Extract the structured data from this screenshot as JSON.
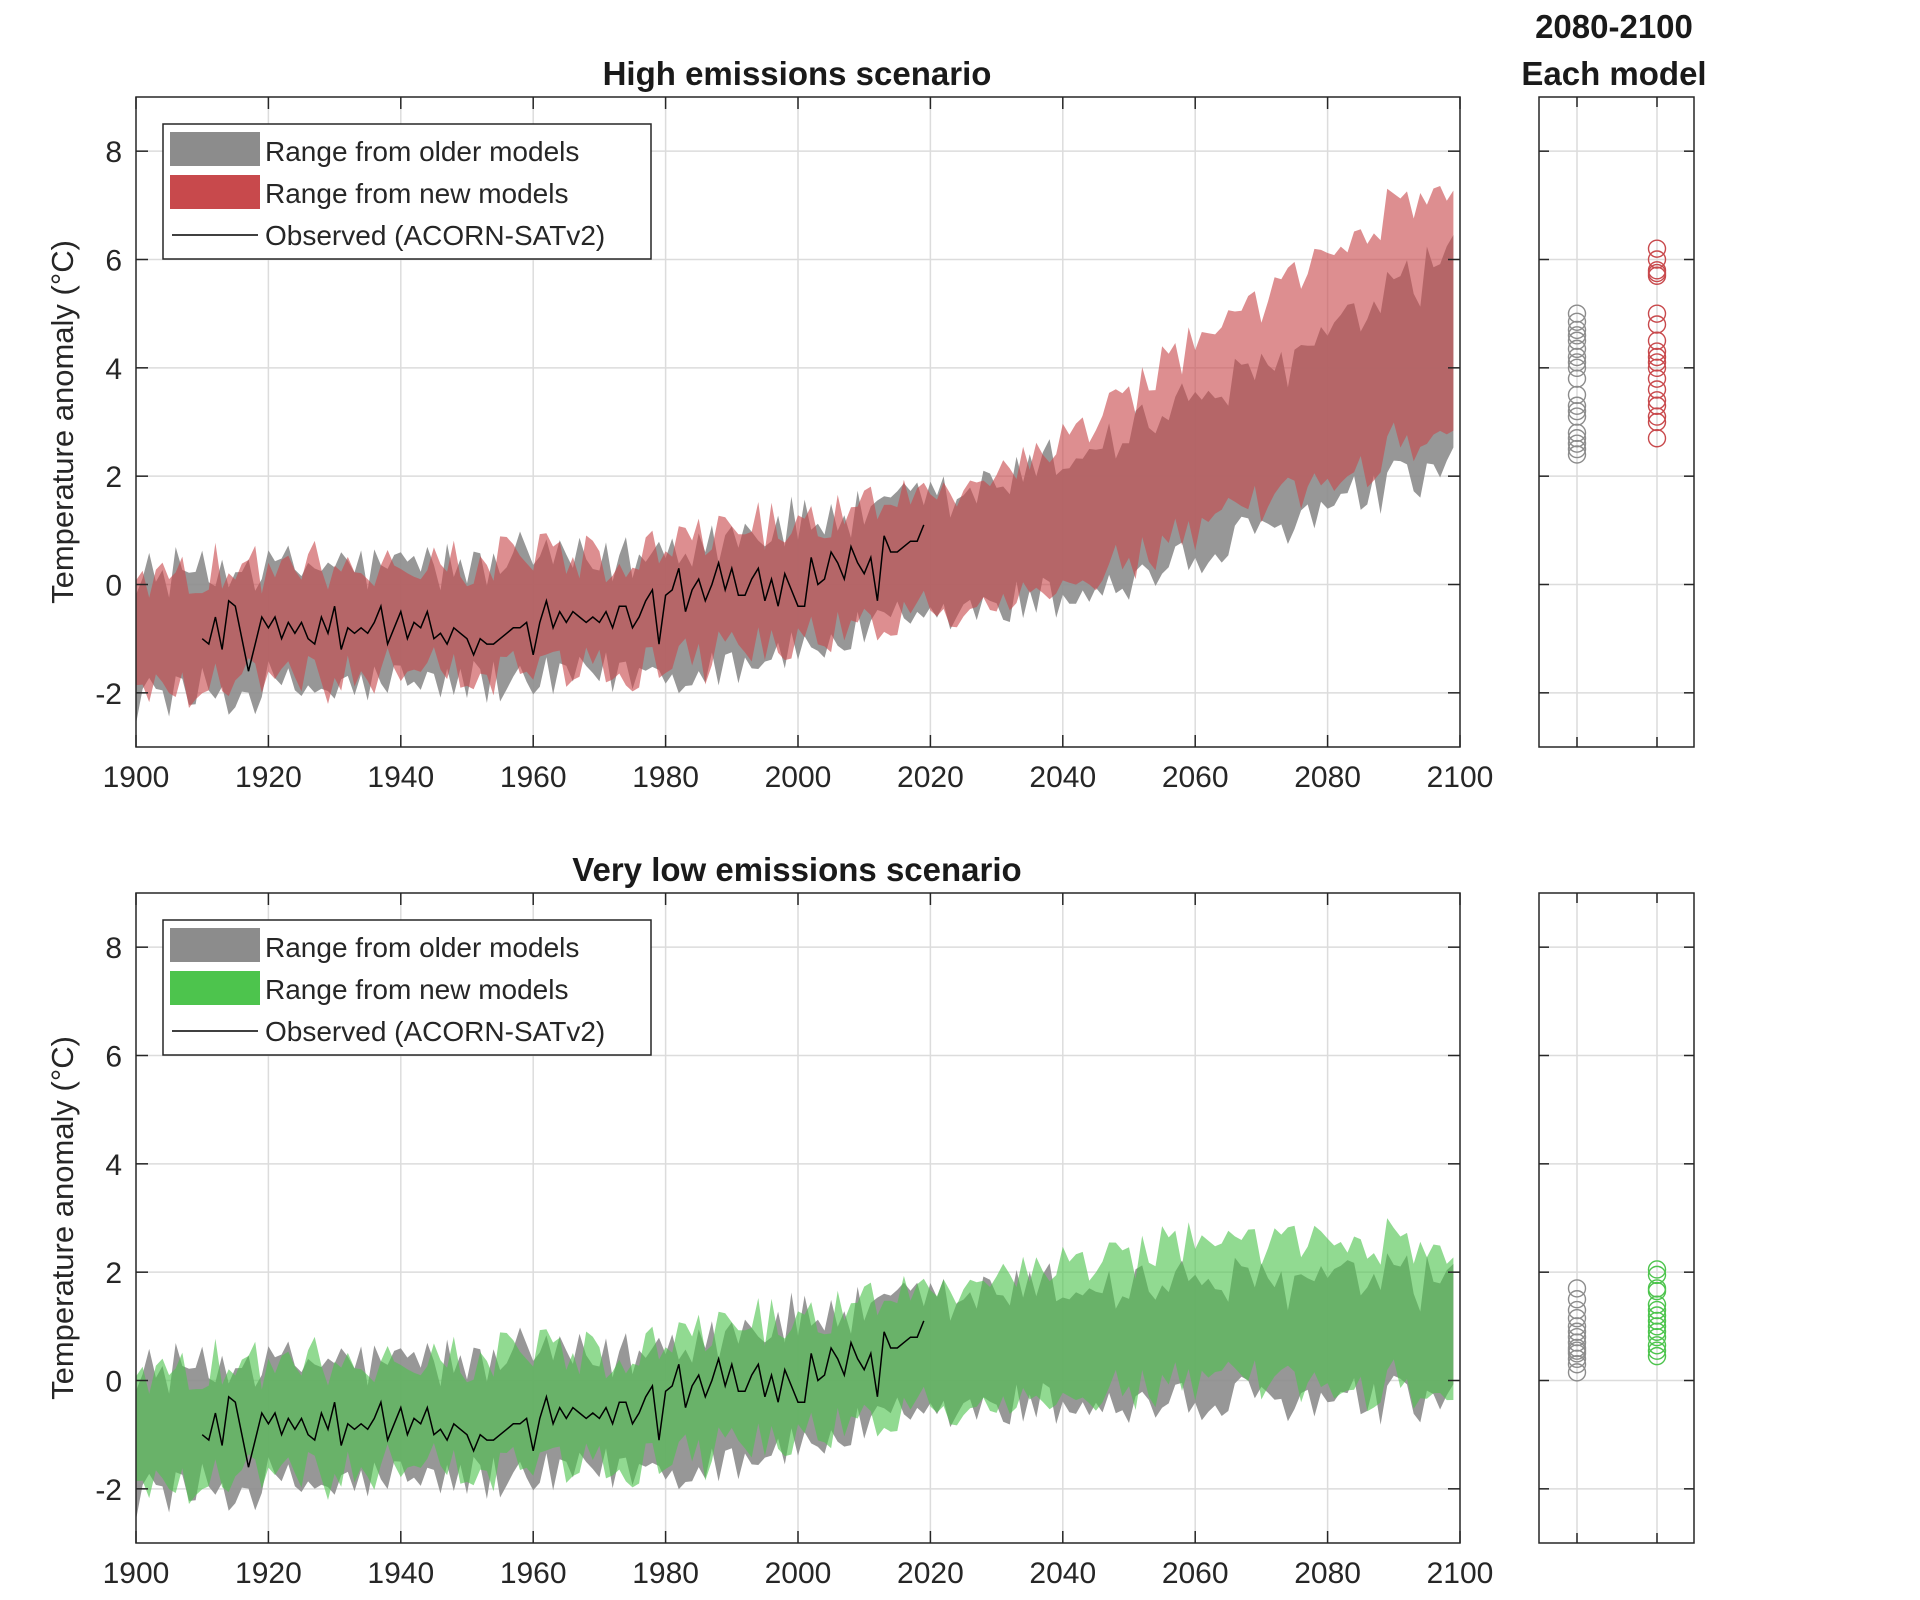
{
  "chart_data": [
    {
      "id": "high",
      "type": "area",
      "title": "High emissions scenario",
      "xlabel": "",
      "ylabel": "Temperature anomaly (°C)",
      "xlim": [
        1900,
        2100
      ],
      "ylim": [
        -3,
        9
      ],
      "x_ticks": [
        "1900",
        "1920",
        "1940",
        "1960",
        "1980",
        "2000",
        "2020",
        "2040",
        "2060",
        "2080",
        "2100"
      ],
      "y_ticks": [
        "-2",
        "0",
        "2",
        "4",
        "6",
        "8"
      ],
      "grid": true,
      "legend_position": "top-left",
      "legend": [
        "Range from older models",
        "Range from new models",
        "Observed (ACORN-SATv2)"
      ],
      "colors": {
        "older": "#8c8c8c",
        "new": "#c8494c",
        "observed": "#000000"
      },
      "older_range": {
        "x": [
          1900,
          1910,
          1920,
          1930,
          1940,
          1950,
          1960,
          1970,
          1980,
          1990,
          2000,
          2010,
          2020,
          2030,
          2040,
          2050,
          2060,
          2070,
          2080,
          2090,
          2099
        ],
        "lower": [
          -1.9,
          -1.9,
          -1.8,
          -1.8,
          -1.7,
          -1.7,
          -1.7,
          -1.6,
          -1.5,
          -1.3,
          -1.1,
          -0.8,
          -0.6,
          -0.3,
          -0.1,
          0.2,
          0.6,
          1.0,
          1.5,
          1.9,
          2.3
        ],
        "upper": [
          0.0,
          0.1,
          0.2,
          0.2,
          0.2,
          0.2,
          0.3,
          0.3,
          0.5,
          0.8,
          1.0,
          1.2,
          1.4,
          1.7,
          2.2,
          2.7,
          3.3,
          3.8,
          4.4,
          5.2,
          6.0
        ]
      },
      "new_range": {
        "x": [
          1900,
          1910,
          1920,
          1930,
          1940,
          1950,
          1960,
          1970,
          1980,
          1990,
          2000,
          2010,
          2020,
          2030,
          2040,
          2050,
          2060,
          2070,
          2080,
          2090,
          2099
        ],
        "lower": [
          -1.7,
          -1.7,
          -1.6,
          -1.6,
          -1.5,
          -1.5,
          -1.5,
          -1.4,
          -1.3,
          -1.1,
          -0.9,
          -0.6,
          -0.4,
          -0.1,
          0.2,
          0.6,
          1.0,
          1.5,
          2.0,
          2.6,
          3.2
        ],
        "upper": [
          0.1,
          0.1,
          0.2,
          0.2,
          0.2,
          0.2,
          0.3,
          0.4,
          0.6,
          0.8,
          1.0,
          1.3,
          1.6,
          2.0,
          2.6,
          3.4,
          4.2,
          5.0,
          5.9,
          6.8,
          7.4
        ]
      },
      "observed": {
        "x": [
          1910,
          1911,
          1912,
          1913,
          1914,
          1915,
          1916,
          1917,
          1918,
          1919,
          1920,
          1921,
          1922,
          1923,
          1924,
          1925,
          1926,
          1927,
          1928,
          1929,
          1930,
          1931,
          1932,
          1933,
          1934,
          1935,
          1936,
          1937,
          1938,
          1939,
          1940,
          1941,
          1942,
          1943,
          1944,
          1945,
          1946,
          1947,
          1948,
          1949,
          1950,
          1951,
          1952,
          1953,
          1954,
          1955,
          1956,
          1957,
          1958,
          1959,
          1960,
          1961,
          1962,
          1963,
          1964,
          1965,
          1966,
          1967,
          1968,
          1969,
          1970,
          1971,
          1972,
          1973,
          1974,
          1975,
          1976,
          1977,
          1978,
          1979,
          1980,
          1981,
          1982,
          1983,
          1984,
          1985,
          1986,
          1987,
          1988,
          1989,
          1990,
          1991,
          1992,
          1993,
          1994,
          1995,
          1996,
          1997,
          1998,
          1999,
          2000,
          2001,
          2002,
          2003,
          2004,
          2005,
          2006,
          2007,
          2008,
          2009,
          2010,
          2011,
          2012,
          2013,
          2014,
          2015,
          2016,
          2017,
          2018,
          2019
        ],
        "y": [
          -1.0,
          -1.1,
          -0.6,
          -1.2,
          -0.3,
          -0.4,
          -1.0,
          -1.6,
          -1.1,
          -0.6,
          -0.8,
          -0.6,
          -1.0,
          -0.7,
          -0.9,
          -0.7,
          -1.0,
          -1.1,
          -0.6,
          -0.9,
          -0.4,
          -1.2,
          -0.8,
          -0.9,
          -0.8,
          -0.9,
          -0.7,
          -0.4,
          -1.1,
          -0.8,
          -0.5,
          -1.0,
          -0.7,
          -0.8,
          -0.5,
          -1.0,
          -0.9,
          -1.1,
          -0.8,
          -0.9,
          -1.0,
          -1.3,
          -1.0,
          -1.1,
          -1.1,
          -1.0,
          -0.9,
          -0.8,
          -0.8,
          -0.7,
          -1.3,
          -0.7,
          -0.3,
          -0.8,
          -0.5,
          -0.7,
          -0.5,
          -0.6,
          -0.7,
          -0.6,
          -0.7,
          -0.5,
          -0.8,
          -0.4,
          -0.4,
          -0.8,
          -0.6,
          -0.3,
          -0.1,
          -1.1,
          -0.2,
          -0.1,
          0.3,
          -0.5,
          -0.1,
          0.1,
          -0.3,
          0.0,
          0.4,
          -0.1,
          0.3,
          -0.2,
          -0.2,
          0.1,
          0.3,
          -0.3,
          0.1,
          -0.4,
          0.2,
          -0.1,
          -0.4,
          -0.4,
          0.5,
          0.0,
          0.1,
          0.6,
          0.4,
          0.1,
          0.7,
          0.4,
          0.2,
          0.5,
          -0.3,
          0.9,
          0.6,
          0.6,
          0.7,
          0.8,
          0.8,
          1.1
        ]
      }
    },
    {
      "id": "low",
      "type": "area",
      "title": "Very low emissions scenario",
      "xlabel": "",
      "ylabel": "Temperature anomaly (°C)",
      "xlim": [
        1900,
        2100
      ],
      "ylim": [
        -3,
        9
      ],
      "x_ticks": [
        "1900",
        "1920",
        "1940",
        "1960",
        "1980",
        "2000",
        "2020",
        "2040",
        "2060",
        "2080",
        "2100"
      ],
      "y_ticks": [
        "-2",
        "0",
        "2",
        "4",
        "6",
        "8"
      ],
      "grid": true,
      "legend_position": "top-left",
      "legend": [
        "Range from older models",
        "Range from new models",
        "Observed (ACORN-SATv2)"
      ],
      "colors": {
        "older": "#8c8c8c",
        "new": "#4dc44d",
        "observed": "#000000"
      },
      "older_range": {
        "x": [
          1900,
          1910,
          1920,
          1930,
          1940,
          1950,
          1960,
          1970,
          1980,
          1990,
          2000,
          2010,
          2020,
          2030,
          2040,
          2050,
          2060,
          2070,
          2080,
          2090,
          2099
        ],
        "lower": [
          -1.9,
          -1.9,
          -1.8,
          -1.8,
          -1.7,
          -1.7,
          -1.7,
          -1.6,
          -1.5,
          -1.3,
          -1.1,
          -0.8,
          -0.6,
          -0.4,
          -0.3,
          -0.3,
          -0.3,
          -0.3,
          -0.3,
          -0.3,
          -0.3
        ],
        "upper": [
          0.0,
          0.1,
          0.2,
          0.2,
          0.2,
          0.2,
          0.3,
          0.3,
          0.5,
          0.8,
          1.0,
          1.2,
          1.3,
          1.5,
          1.6,
          1.6,
          1.7,
          1.7,
          1.7,
          1.7,
          1.7
        ]
      },
      "new_range": {
        "x": [
          1900,
          1910,
          1920,
          1930,
          1940,
          1950,
          1960,
          1970,
          1980,
          1990,
          2000,
          2010,
          2020,
          2030,
          2040,
          2050,
          2060,
          2070,
          2080,
          2090,
          2099
        ],
        "lower": [
          -1.7,
          -1.7,
          -1.6,
          -1.6,
          -1.5,
          -1.5,
          -1.5,
          -1.4,
          -1.3,
          -1.1,
          -0.9,
          -0.6,
          -0.4,
          -0.2,
          -0.1,
          0.0,
          0.0,
          0.0,
          0.0,
          0.0,
          0.0
        ],
        "upper": [
          0.1,
          0.1,
          0.2,
          0.2,
          0.2,
          0.2,
          0.3,
          0.4,
          0.6,
          0.8,
          1.0,
          1.3,
          1.6,
          1.9,
          2.1,
          2.2,
          2.3,
          2.3,
          2.4,
          2.4,
          2.4
        ]
      },
      "observed": {
        "x": [
          1910,
          1911,
          1912,
          1913,
          1914,
          1915,
          1916,
          1917,
          1918,
          1919,
          1920,
          1921,
          1922,
          1923,
          1924,
          1925,
          1926,
          1927,
          1928,
          1929,
          1930,
          1931,
          1932,
          1933,
          1934,
          1935,
          1936,
          1937,
          1938,
          1939,
          1940,
          1941,
          1942,
          1943,
          1944,
          1945,
          1946,
          1947,
          1948,
          1949,
          1950,
          1951,
          1952,
          1953,
          1954,
          1955,
          1956,
          1957,
          1958,
          1959,
          1960,
          1961,
          1962,
          1963,
          1964,
          1965,
          1966,
          1967,
          1968,
          1969,
          1970,
          1971,
          1972,
          1973,
          1974,
          1975,
          1976,
          1977,
          1978,
          1979,
          1980,
          1981,
          1982,
          1983,
          1984,
          1985,
          1986,
          1987,
          1988,
          1989,
          1990,
          1991,
          1992,
          1993,
          1994,
          1995,
          1996,
          1997,
          1998,
          1999,
          2000,
          2001,
          2002,
          2003,
          2004,
          2005,
          2006,
          2007,
          2008,
          2009,
          2010,
          2011,
          2012,
          2013,
          2014,
          2015,
          2016,
          2017,
          2018,
          2019
        ],
        "y": [
          -1.0,
          -1.1,
          -0.6,
          -1.2,
          -0.3,
          -0.4,
          -1.0,
          -1.6,
          -1.1,
          -0.6,
          -0.8,
          -0.6,
          -1.0,
          -0.7,
          -0.9,
          -0.7,
          -1.0,
          -1.1,
          -0.6,
          -0.9,
          -0.4,
          -1.2,
          -0.8,
          -0.9,
          -0.8,
          -0.9,
          -0.7,
          -0.4,
          -1.1,
          -0.8,
          -0.5,
          -1.0,
          -0.7,
          -0.8,
          -0.5,
          -1.0,
          -0.9,
          -1.1,
          -0.8,
          -0.9,
          -1.0,
          -1.3,
          -1.0,
          -1.1,
          -1.1,
          -1.0,
          -0.9,
          -0.8,
          -0.8,
          -0.7,
          -1.3,
          -0.7,
          -0.3,
          -0.8,
          -0.5,
          -0.7,
          -0.5,
          -0.6,
          -0.7,
          -0.6,
          -0.7,
          -0.5,
          -0.8,
          -0.4,
          -0.4,
          -0.8,
          -0.6,
          -0.3,
          -0.1,
          -1.1,
          -0.2,
          -0.1,
          0.3,
          -0.5,
          -0.1,
          0.1,
          -0.3,
          0.0,
          0.4,
          -0.1,
          0.3,
          -0.2,
          -0.2,
          0.1,
          0.3,
          -0.3,
          0.1,
          -0.4,
          0.2,
          -0.1,
          -0.4,
          -0.4,
          0.5,
          0.0,
          0.1,
          0.6,
          0.4,
          0.1,
          0.7,
          0.4,
          0.2,
          0.5,
          -0.3,
          0.9,
          0.6,
          0.6,
          0.7,
          0.8,
          0.8,
          1.1
        ]
      }
    },
    {
      "id": "high-each",
      "type": "scatter",
      "title_lines": [
        "2080-2100",
        "Each model"
      ],
      "ylim": [
        -3,
        9
      ],
      "categories": [
        "older models",
        "new models"
      ],
      "colors": {
        "older": "#8c8c8c",
        "new": "#c8494c"
      },
      "older": [
        5.0,
        4.85,
        4.7,
        4.6,
        4.5,
        4.35,
        4.2,
        4.1,
        4.0,
        3.8,
        3.5,
        3.3,
        3.2,
        3.1,
        2.8,
        2.7,
        2.6,
        2.5,
        2.4
      ],
      "new": [
        6.2,
        6.0,
        5.8,
        5.75,
        5.7,
        5.0,
        4.8,
        4.5,
        4.3,
        4.2,
        4.1,
        4.0,
        3.8,
        3.6,
        3.4,
        3.3,
        3.1,
        3.0,
        2.7
      ]
    },
    {
      "id": "low-each",
      "type": "scatter",
      "ylim": [
        -3,
        9
      ],
      "categories": [
        "older models",
        "new models"
      ],
      "colors": {
        "older": "#8c8c8c",
        "new": "#4dc44d"
      },
      "older": [
        1.7,
        1.5,
        1.3,
        1.15,
        1.0,
        0.9,
        0.8,
        0.7,
        0.6,
        0.55,
        0.5,
        0.4,
        0.3,
        0.15
      ],
      "new": [
        2.05,
        1.95,
        1.7,
        1.65,
        1.4,
        1.3,
        1.2,
        1.1,
        1.0,
        0.9,
        0.8,
        0.65,
        0.55,
        0.45
      ]
    }
  ]
}
